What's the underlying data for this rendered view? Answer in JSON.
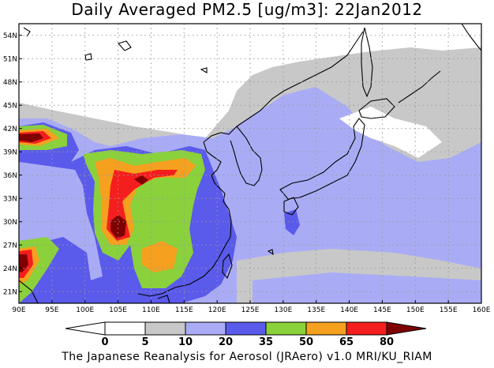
{
  "title": "Daily Averaged PM2.5 [ug/m3]: 22Jan2012",
  "footer": "The Japanese Reanalysis for Aerosol (JRAero) v1.0 MRI/KU_RIAM",
  "map": {
    "lon_range": [
      90,
      160
    ],
    "lat_range": [
      19.5,
      55.5
    ],
    "lon_ticks": [
      "90E",
      "95E",
      "100E",
      "105E",
      "110E",
      "115E",
      "120E",
      "125E",
      "130E",
      "135E",
      "140E",
      "145E",
      "150E",
      "155E",
      "160E"
    ],
    "lat_ticks": [
      "21N",
      "24N",
      "27N",
      "30N",
      "33N",
      "36N",
      "39N",
      "42N",
      "45N",
      "48N",
      "51N",
      "54N"
    ],
    "gridlines": true
  },
  "colorbar": {
    "labels": [
      "0",
      "5",
      "10",
      "20",
      "35",
      "50",
      "65",
      "80"
    ],
    "colors": [
      "#ffffff",
      "#ffffff",
      "#c8c8c8",
      "#a9acf5",
      "#5a5aeb",
      "#8ad13c",
      "#f5a01e",
      "#f51e1e",
      "#7f0000"
    ]
  }
}
